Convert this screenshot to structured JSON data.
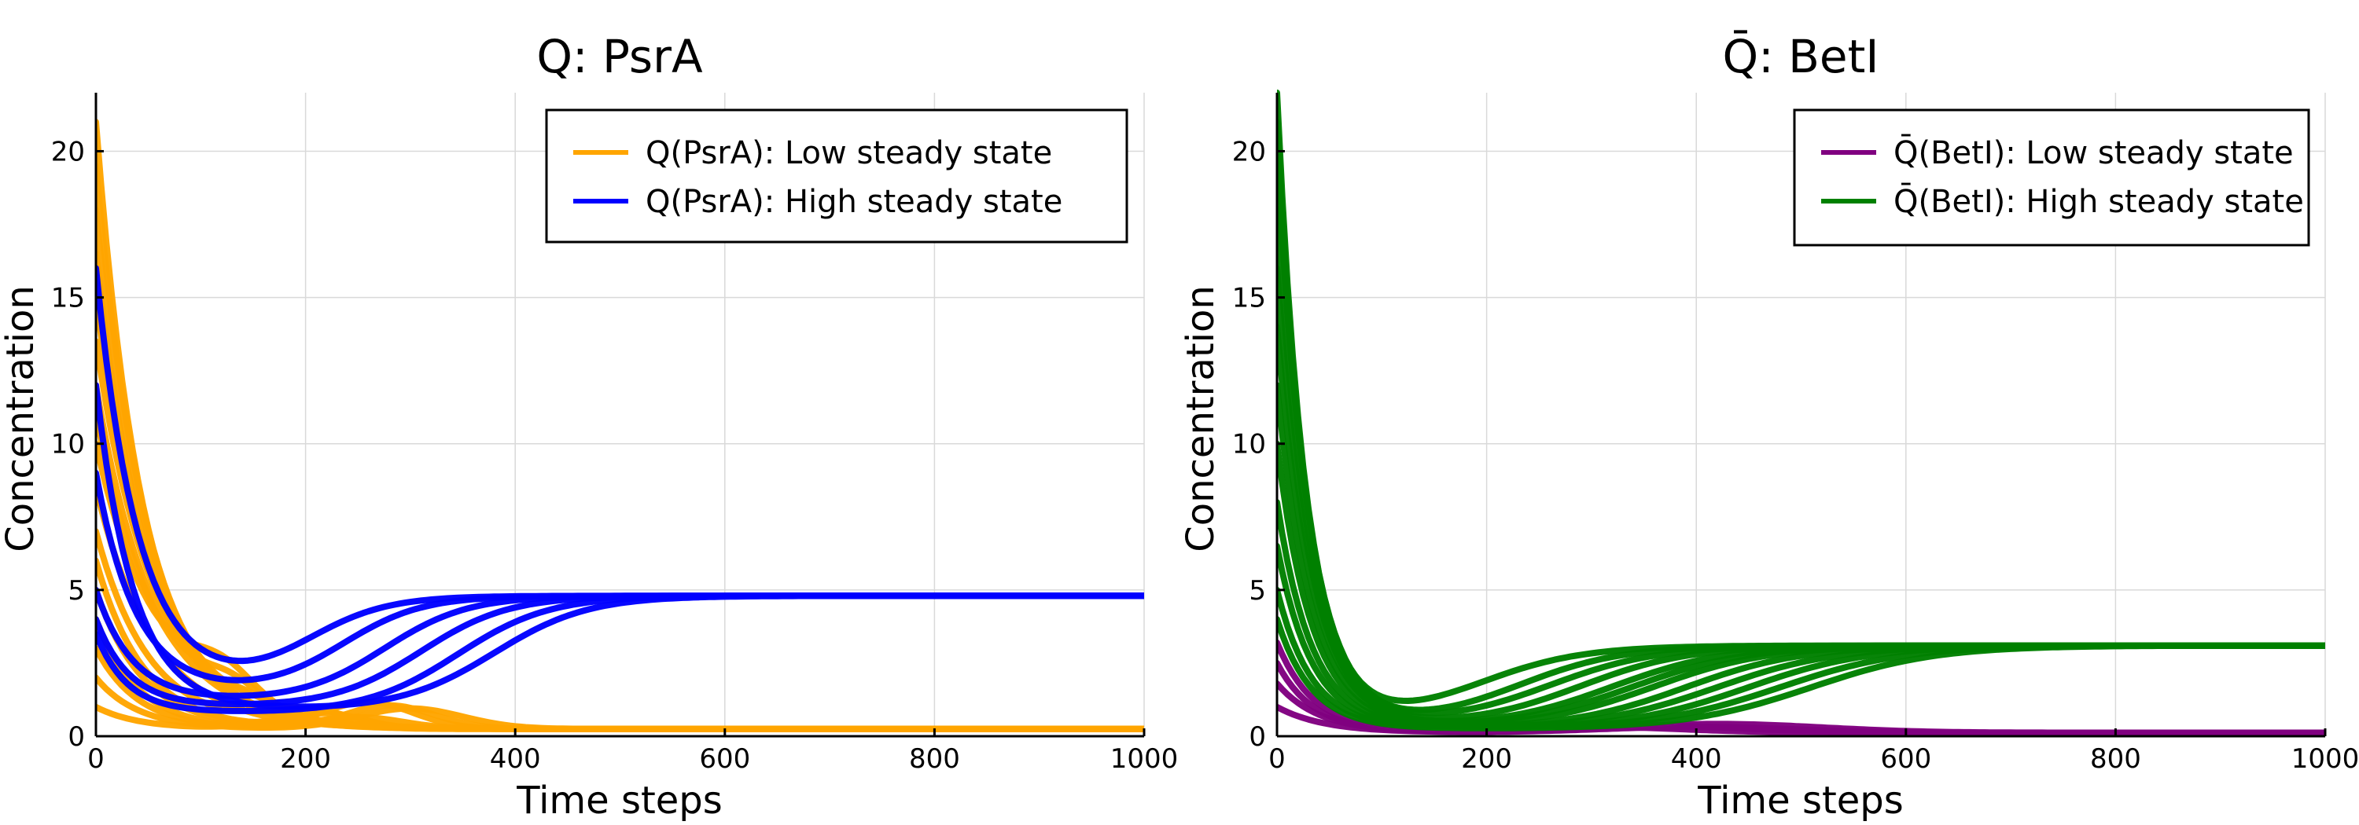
{
  "chart_data": [
    {
      "type": "line",
      "title": "Q: PsrA",
      "xlabel": "Time steps",
      "ylabel": "Concentration",
      "xlim": [
        0,
        1000
      ],
      "ylim": [
        0,
        22
      ],
      "xticks": [
        0,
        200,
        400,
        600,
        800,
        1000
      ],
      "yticks": [
        0,
        5,
        10,
        15,
        20
      ],
      "grid": true,
      "legend_position": "top-right",
      "series": [
        {
          "name": "Q(PsrA): Low steady state",
          "color": "#FFA500",
          "steady_state": 0.25,
          "trajectories": [
            {
              "start": 21.0,
              "tau": 45,
              "bump": 0.0,
              "bump_center": 0,
              "bump_width": 1
            },
            {
              "start": 19.5,
              "tau": 48,
              "bump": 0.0,
              "bump_center": 0,
              "bump_width": 1
            },
            {
              "start": 18.0,
              "tau": 50,
              "bump": 0.3,
              "bump_center": 160,
              "bump_width": 40
            },
            {
              "start": 16.5,
              "tau": 50,
              "bump": 0.0,
              "bump_center": 0,
              "bump_width": 1
            },
            {
              "start": 15.0,
              "tau": 52,
              "bump": 0.4,
              "bump_center": 150,
              "bump_width": 40
            },
            {
              "start": 13.5,
              "tau": 55,
              "bump": 0.0,
              "bump_center": 0,
              "bump_width": 1
            },
            {
              "start": 12.0,
              "tau": 55,
              "bump": 0.8,
              "bump_center": 130,
              "bump_width": 40
            },
            {
              "start": 11.0,
              "tau": 58,
              "bump": 0.0,
              "bump_center": 0,
              "bump_width": 1
            },
            {
              "start": 10.0,
              "tau": 60,
              "bump": 1.2,
              "bump_center": 120,
              "bump_width": 45
            },
            {
              "start": 8.5,
              "tau": 55,
              "bump": 0.0,
              "bump_center": 0,
              "bump_width": 1
            },
            {
              "start": 7.0,
              "tau": 50,
              "bump": 0.6,
              "bump_center": 200,
              "bump_width": 60
            },
            {
              "start": 6.0,
              "tau": 45,
              "bump": 0.9,
              "bump_center": 260,
              "bump_width": 60
            },
            {
              "start": 5.0,
              "tau": 45,
              "bump": 0.5,
              "bump_center": 220,
              "bump_width": 50
            },
            {
              "start": 4.0,
              "tau": 40,
              "bump": 0.8,
              "bump_center": 280,
              "bump_width": 60
            },
            {
              "start": 3.0,
              "tau": 40,
              "bump": 0.4,
              "bump_center": 250,
              "bump_width": 60
            },
            {
              "start": 2.0,
              "tau": 40,
              "bump": 0.7,
              "bump_center": 300,
              "bump_width": 70
            },
            {
              "start": 1.0,
              "tau": 40,
              "bump": 0.3,
              "bump_center": 200,
              "bump_width": 60
            }
          ]
        },
        {
          "name": "Q(PsrA): High steady state",
          "color": "#0000FF",
          "steady_state": 4.8,
          "trajectories": [
            {
              "start": 16.0,
              "tau": 40,
              "min": 1.7,
              "rise_center": 200,
              "rise_width": 38
            },
            {
              "start": 9.0,
              "tau": 38,
              "min": 1.5,
              "rise_center": 235,
              "rise_width": 38
            },
            {
              "start": 5.0,
              "tau": 35,
              "min": 1.2,
              "rise_center": 275,
              "rise_width": 40
            },
            {
              "start": 4.0,
              "tau": 32,
              "min": 1.0,
              "rise_center": 310,
              "rise_width": 42
            },
            {
              "start": 3.5,
              "tau": 30,
              "min": 0.8,
              "rise_center": 345,
              "rise_width": 44
            },
            {
              "start": 12.0,
              "tau": 36,
              "min": 0.9,
              "rise_center": 380,
              "rise_width": 45
            }
          ]
        }
      ]
    },
    {
      "type": "line",
      "title": "Q̄: BetI",
      "xlabel": "Time steps",
      "ylabel": "Concentration",
      "xlim": [
        0,
        1000
      ],
      "ylim": [
        0,
        22
      ],
      "xticks": [
        0,
        200,
        400,
        600,
        800,
        1000
      ],
      "yticks": [
        0,
        5,
        10,
        15,
        20
      ],
      "grid": true,
      "legend_position": "top-right",
      "series": [
        {
          "name": "Q̄(BetI): Low steady state",
          "color": "#800080",
          "steady_state": 0.12,
          "trajectories": [
            {
              "start": 3.2,
              "tau": 35,
              "bump": 0.2,
              "bump_center": 300,
              "bump_width": 120
            },
            {
              "start": 2.5,
              "tau": 35,
              "bump": 0.25,
              "bump_center": 350,
              "bump_width": 130
            },
            {
              "start": 1.8,
              "tau": 40,
              "bump": 0.2,
              "bump_center": 400,
              "bump_width": 130
            },
            {
              "start": 1.0,
              "tau": 45,
              "bump": 0.3,
              "bump_center": 420,
              "bump_width": 140
            }
          ]
        },
        {
          "name": "Q̄(BetI): High steady state",
          "color": "#008000",
          "steady_state": 3.1,
          "trajectories": [
            {
              "start": 22.0,
              "tau": 28,
              "min": 0.5,
              "rise_center": 190,
              "rise_width": 50
            },
            {
              "start": 21.0,
              "tau": 29,
              "min": 0.4,
              "rise_center": 230,
              "rise_width": 50
            },
            {
              "start": 20.0,
              "tau": 30,
              "min": 0.4,
              "rise_center": 260,
              "rise_width": 52
            },
            {
              "start": 18.0,
              "tau": 30,
              "min": 0.35,
              "rise_center": 290,
              "rise_width": 52
            },
            {
              "start": 16.0,
              "tau": 31,
              "min": 0.3,
              "rise_center": 320,
              "rise_width": 54
            },
            {
              "start": 14.0,
              "tau": 32,
              "min": 0.3,
              "rise_center": 340,
              "rise_width": 55
            },
            {
              "start": 12.0,
              "tau": 32,
              "min": 0.3,
              "rise_center": 360,
              "rise_width": 55
            },
            {
              "start": 10.0,
              "tau": 33,
              "min": 0.25,
              "rise_center": 390,
              "rise_width": 56
            },
            {
              "start": 8.0,
              "tau": 33,
              "min": 0.25,
              "rise_center": 420,
              "rise_width": 58
            },
            {
              "start": 6.5,
              "tau": 33,
              "min": 0.25,
              "rise_center": 450,
              "rise_width": 58
            },
            {
              "start": 5.0,
              "tau": 33,
              "min": 0.25,
              "rise_center": 480,
              "rise_width": 60
            },
            {
              "start": 4.0,
              "tau": 33,
              "min": 0.25,
              "rise_center": 510,
              "rise_width": 60
            }
          ]
        }
      ]
    }
  ]
}
